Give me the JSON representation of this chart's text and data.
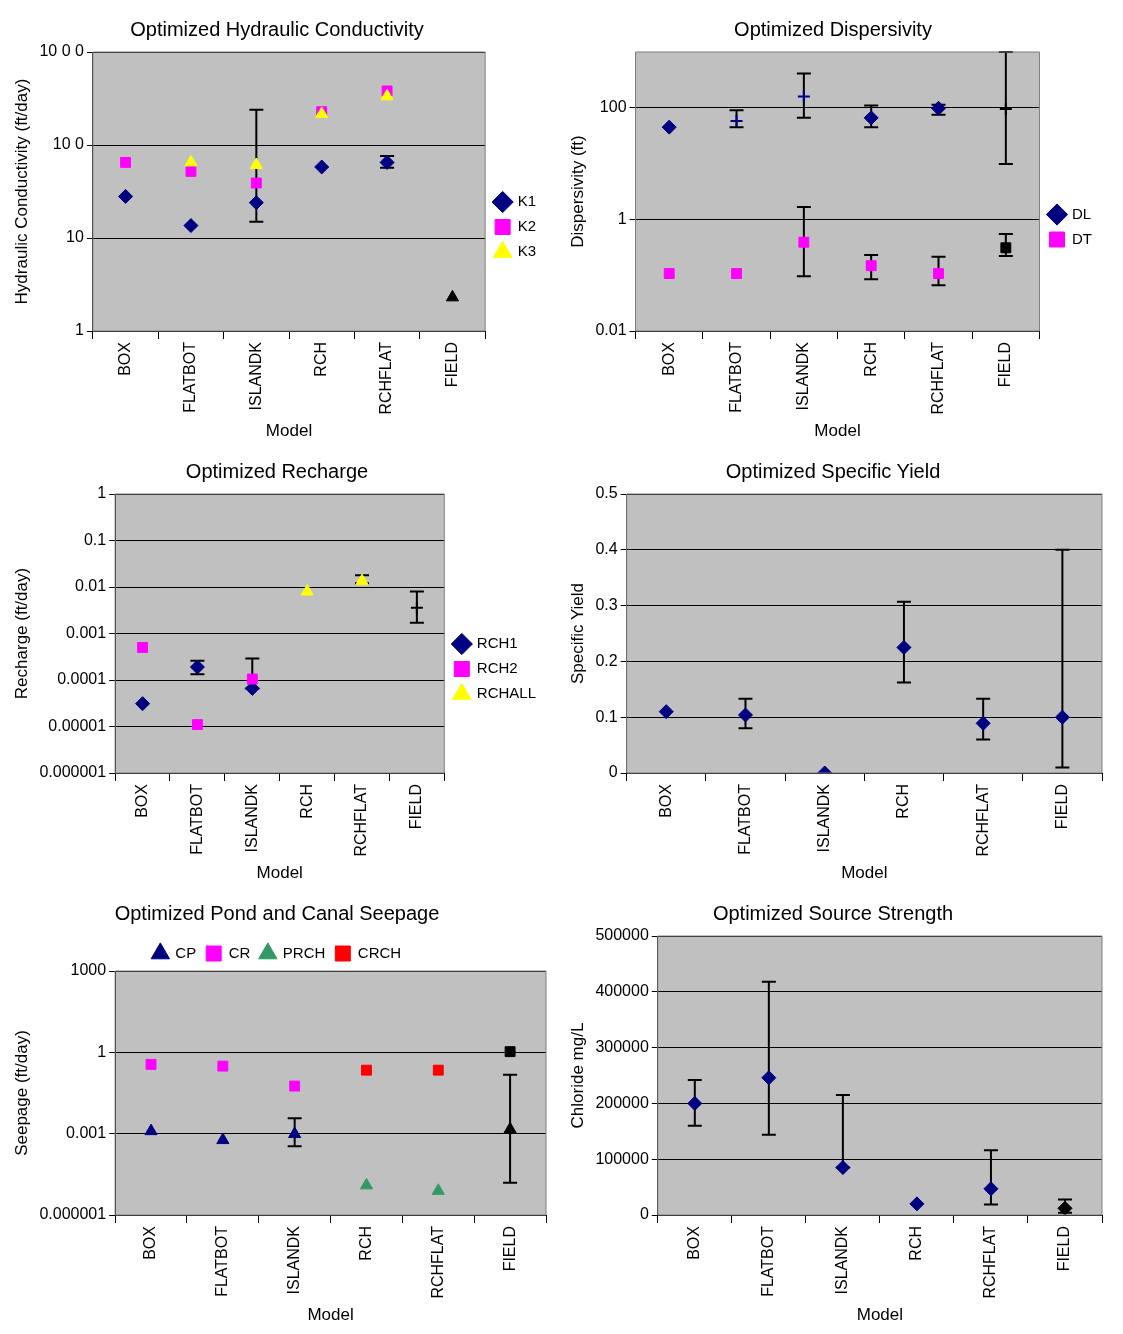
{
  "chart_data": [
    {
      "type": "scatter",
      "title": "Optimized Hydraulic Conductivity",
      "xlabel": "Model",
      "ylabel": "Hydraulic Conductivity (ft/day)",
      "categories": [
        "BOX",
        "FLATBOT",
        "ISLANDK",
        "RCH",
        "RCHFLAT",
        "FIELD"
      ],
      "log": true,
      "ylim": [
        1,
        1000
      ],
      "yticks": [
        1,
        10,
        {
          "value": 100,
          "label": "10 0"
        },
        {
          "value": 1000,
          "label": "10 0 0"
        }
      ],
      "grid": "y",
      "legend": "right",
      "series": [
        {
          "name": "K1",
          "color": "#000080",
          "marker": "diamond",
          "values": [
            28,
            13.6,
            24,
            58,
            65,
            null
          ],
          "errors": [
            null,
            null,
            [
              15,
              240
            ],
            null,
            [
              57,
              76
            ],
            null
          ]
        },
        {
          "name": "K2",
          "color": "#ff00ff",
          "marker": "square",
          "values": [
            65,
            52,
            39,
            228,
            381,
            null
          ]
        },
        {
          "name": "K3",
          "color": "#ffff00",
          "marker": "triangle",
          "values": [
            null,
            65,
            61,
            216,
            334,
            null
          ]
        },
        {
          "color": "#000000",
          "marker": "triangle",
          "values": [
            null,
            null,
            null,
            null,
            null,
            2.3
          ]
        }
      ]
    },
    {
      "type": "scatter",
      "title": "Optimized Dispersivity",
      "xlabel": "Model",
      "ylabel": "Dispersivity (ft)",
      "categories": [
        "BOX",
        "FLATBOT",
        "ISLANDK",
        "RCH",
        "RCHFLAT",
        "FIELD"
      ],
      "log": true,
      "ylim": [
        0.01,
        1000
      ],
      "yticks": [
        0.01,
        1,
        100
      ],
      "grid": "y",
      "legend": "right",
      "series": [
        {
          "name": "DL",
          "color": "#000080",
          "marker": "diamond",
          "values": [
            45,
            null,
            null,
            66,
            98,
            null
          ],
          "errors": [
            null,
            null,
            null,
            [
              45,
              110
            ],
            [
              75,
              113
            ],
            null
          ]
        },
        {
          "name": "DT",
          "color": "#ff00ff",
          "marker": "square",
          "values": [
            0.107,
            0.107,
            0.39,
            0.148,
            0.107,
            null
          ],
          "errors": [
            null,
            null,
            [
              0.096,
              1.67
            ],
            [
              0.085,
              0.23
            ],
            [
              0.066,
              0.215
            ],
            null
          ]
        },
        {
          "color": "#000080",
          "marker": "cross",
          "values": [
            null,
            58,
            160,
            null,
            null,
            null
          ],
          "errors": [
            null,
            [
              45,
              90
            ],
            [
              66,
              410
            ],
            null,
            null,
            null
          ]
        },
        {
          "color": "#000000",
          "marker": "cross",
          "values": [
            null,
            null,
            null,
            null,
            null,
            95
          ],
          "errors": [
            null,
            null,
            null,
            null,
            null,
            [
              9.8,
              1000
            ]
          ]
        },
        {
          "color": "#000000",
          "marker": "square",
          "values": [
            null,
            null,
            null,
            null,
            null,
            0.31
          ],
          "errors": [
            null,
            null,
            null,
            null,
            null,
            [
              0.22,
              0.55
            ]
          ]
        }
      ]
    },
    {
      "type": "scatter",
      "title": "Optimized Recharge",
      "xlabel": "Model",
      "ylabel": "Recharge (ft/day)",
      "categories": [
        "BOX",
        "FLATBOT",
        "ISLANDK",
        "RCH",
        "RCHFLAT",
        "FIELD"
      ],
      "log": true,
      "ylim": [
        1e-06,
        1
      ],
      "yticks": [
        {
          "value": 1e-06,
          "label": "0.000001"
        },
        {
          "value": 1e-05,
          "label": "0.00001"
        },
        0.0001,
        0.001,
        0.01,
        0.1,
        1
      ],
      "grid": "y",
      "legend": "right",
      "series": [
        {
          "name": "RCH1",
          "color": "#000080",
          "marker": "diamond",
          "values": [
            3.1e-05,
            0.00019,
            6.6e-05,
            null,
            null,
            null
          ],
          "errors": [
            null,
            [
              0.000133,
              0.00026
            ],
            [
              6.6e-05,
              0.00029
            ],
            null,
            null,
            null
          ]
        },
        {
          "name": "RCH2",
          "color": "#ff00ff",
          "marker": "square",
          "values": [
            0.0005,
            1.1e-05,
            0.000105,
            null,
            null,
            null
          ]
        },
        {
          "name": "RCHALL",
          "color": "#ffff00",
          "marker": "triangle",
          "values": [
            null,
            null,
            null,
            0.008,
            0.0134,
            null
          ],
          "errors": [
            null,
            null,
            null,
            null,
            [
              0.012,
              0.018
            ],
            null
          ]
        },
        {
          "color": "#000000",
          "marker": "cross",
          "values": [
            null,
            null,
            null,
            null,
            null,
            0.0036
          ],
          "errors": [
            null,
            null,
            null,
            null,
            null,
            [
              0.0017,
              0.008
            ]
          ]
        }
      ]
    },
    {
      "type": "scatter",
      "title": "Optimized Specific Yield",
      "xlabel": "Model",
      "ylabel": "Specific Yield",
      "categories": [
        "BOX",
        "FLATBOT",
        "ISLANDK",
        "RCH",
        "RCHFLAT",
        "FIELD"
      ],
      "ylim": [
        0,
        0.5
      ],
      "yticks": [
        0,
        0.1,
        0.2,
        0.3,
        0.4,
        0.5
      ],
      "grid": "y",
      "series": [
        {
          "color": "#000080",
          "marker": "diamond",
          "values": [
            0.11,
            0.104,
            0,
            0.225,
            0.089,
            0.1
          ],
          "errors": [
            null,
            [
              0.08,
              0.133
            ],
            null,
            [
              0.162,
              0.307
            ],
            [
              0.06,
              0.133
            ],
            [
              0.01,
              0.4
            ]
          ]
        }
      ]
    },
    {
      "type": "scatter",
      "title": "Optimized Pond and Canal Seepage",
      "xlabel": "Model",
      "ylabel": "Seepage (ft/day)",
      "categories": [
        "BOX",
        "FLATBOT",
        "ISLANDK",
        "RCH",
        "RCHFLAT",
        "FIELD"
      ],
      "log": true,
      "ylim": [
        1e-06,
        1000
      ],
      "yticks": [
        {
          "value": 1e-06,
          "label": "0.000001"
        },
        0.001,
        1,
        1000
      ],
      "grid": "y",
      "legend": "top",
      "series": [
        {
          "name": "CP",
          "color": "#000080",
          "marker": "triangle",
          "values": [
            0.00124,
            0.00058,
            0.00097,
            null,
            null,
            null
          ],
          "errors": [
            null,
            null,
            [
              0.00034,
              0.0037
            ],
            null,
            null,
            null
          ]
        },
        {
          "name": "CR",
          "color": "#ff00ff",
          "marker": "square",
          "values": [
            0.36,
            0.31,
            0.057,
            null,
            null,
            null
          ]
        },
        {
          "name": "PRCH",
          "color": "#339966",
          "marker": "triangle",
          "values": [
            null,
            null,
            null,
            1.24e-05,
            7.8e-06,
            null
          ]
        },
        {
          "name": "CRCH",
          "color": "#ff0000",
          "marker": "square",
          "values": [
            null,
            null,
            null,
            0.22,
            0.22,
            null
          ]
        },
        {
          "color": "#000000",
          "marker": "triangle",
          "values": [
            null,
            null,
            null,
            null,
            null,
            0.00145
          ],
          "errors": [
            null,
            null,
            null,
            null,
            null,
            [
              1.55e-05,
              0.149
            ]
          ]
        },
        {
          "color": "#000000",
          "marker": "square",
          "values": [
            null,
            null,
            null,
            null,
            null,
            1.06
          ]
        }
      ]
    },
    {
      "type": "scatter",
      "title": "Optimized Source Strength",
      "xlabel": "Model",
      "ylabel": "Chloride mg/L",
      "categories": [
        "BOX",
        "FLATBOT",
        "ISLANDK",
        "RCH",
        "RCHFLAT",
        "FIELD"
      ],
      "ylim": [
        0,
        500000
      ],
      "yticks": [
        0,
        100000,
        200000,
        300000,
        400000,
        500000
      ],
      "grid": "y",
      "series": [
        {
          "color": "#000080",
          "marker": "diamond",
          "values": [
            200000,
            246000,
            85000,
            20000,
            47000,
            null
          ],
          "errors": [
            [
              160000,
              242000
            ],
            [
              144000,
              418000
            ],
            [
              85000,
              215000
            ],
            null,
            [
              19000,
              116000
            ],
            null
          ]
        },
        {
          "color": "#000000",
          "marker": "diamond",
          "values": [
            null,
            null,
            null,
            null,
            null,
            12000
          ],
          "errors": [
            null,
            null,
            null,
            null,
            null,
            [
              4000,
              28000
            ]
          ]
        }
      ]
    }
  ]
}
